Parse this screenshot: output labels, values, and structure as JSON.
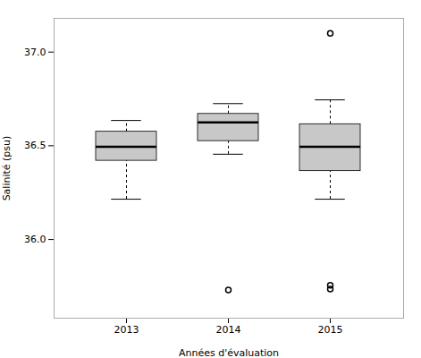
{
  "chart_data": {
    "type": "box",
    "xlabel": "Années d'évaluation",
    "ylabel": "Salinité (psu)",
    "categories": [
      "2013",
      "2014",
      "2015"
    ],
    "q1": [
      36.42,
      36.525,
      36.365
    ],
    "median": [
      36.495,
      36.625,
      36.495
    ],
    "q3": [
      36.575,
      36.67,
      36.615
    ],
    "whisker_low": [
      36.215,
      36.455,
      36.215
    ],
    "whisker_high": [
      36.635,
      36.725,
      36.745
    ],
    "outliers": [
      [],
      [
        35.73
      ],
      [
        37.1,
        35.735,
        35.755
      ]
    ],
    "ylim": [
      35.58,
      37.18
    ],
    "yticks": [
      {
        "value": 36.0,
        "label": "36.0"
      },
      36.5,
      {
        "value": 37.0,
        "label": "37.0"
      }
    ],
    "color": "#c8c8c8"
  }
}
